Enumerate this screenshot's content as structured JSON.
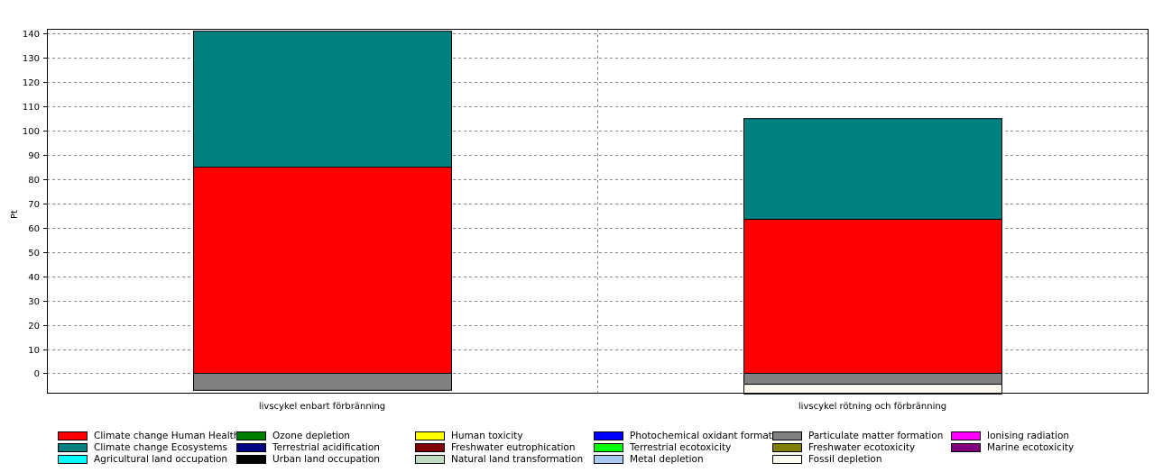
{
  "chart_data": {
    "type": "bar",
    "stacked": true,
    "ylabel": "Pt",
    "xlabel": "",
    "ylim": [
      -8,
      142
    ],
    "yticks": [
      0,
      10,
      20,
      30,
      40,
      50,
      60,
      70,
      80,
      90,
      100,
      110,
      120,
      130,
      140
    ],
    "grid": true,
    "legend_position": "bottom",
    "categories": [
      "livscykel enbart förbränning",
      "livscykel rötning och förbränning"
    ],
    "series": [
      {
        "name": "Climate change Human Health",
        "color": "#ff0000",
        "values": [
          85,
          63.5
        ]
      },
      {
        "name": "Ozone depletion",
        "color": "#008000",
        "values": [
          0,
          0
        ]
      },
      {
        "name": "Human toxicity",
        "color": "#ffff00",
        "values": [
          0,
          0
        ]
      },
      {
        "name": "Photochemical oxidant formation",
        "color": "#0000ff",
        "values": [
          0,
          0
        ]
      },
      {
        "name": "Particulate matter formation",
        "color": "#808080",
        "values": [
          -7,
          -4.5
        ]
      },
      {
        "name": "Ionising radiation",
        "color": "#ff00ff",
        "values": [
          0,
          0
        ]
      },
      {
        "name": "Climate change Ecosystems",
        "color": "#008080",
        "values": [
          56,
          41.5
        ]
      },
      {
        "name": "Terrestrial acidification",
        "color": "#000080",
        "values": [
          0,
          0
        ]
      },
      {
        "name": "Freshwater eutrophication",
        "color": "#800000",
        "values": [
          0,
          0
        ]
      },
      {
        "name": "Terrestrial ecotoxicity",
        "color": "#00ff00",
        "values": [
          0,
          0
        ]
      },
      {
        "name": "Freshwater ecotoxicity",
        "color": "#808000",
        "values": [
          0,
          0
        ]
      },
      {
        "name": "Marine ecotoxicity",
        "color": "#800080",
        "values": [
          0,
          0
        ]
      },
      {
        "name": "Agricultural land occupation",
        "color": "#00ffff",
        "values": [
          0,
          0
        ]
      },
      {
        "name": "Urban land occupation",
        "color": "#000000",
        "values": [
          0,
          0
        ]
      },
      {
        "name": "Natural land transformation",
        "color": "#c0dcc0",
        "values": [
          0,
          0
        ]
      },
      {
        "name": "Metal depletion",
        "color": "#a6caf0",
        "values": [
          0,
          0
        ]
      },
      {
        "name": "Fossil depletion",
        "color": "#fffbf0",
        "values": [
          0,
          -4
        ]
      }
    ]
  }
}
